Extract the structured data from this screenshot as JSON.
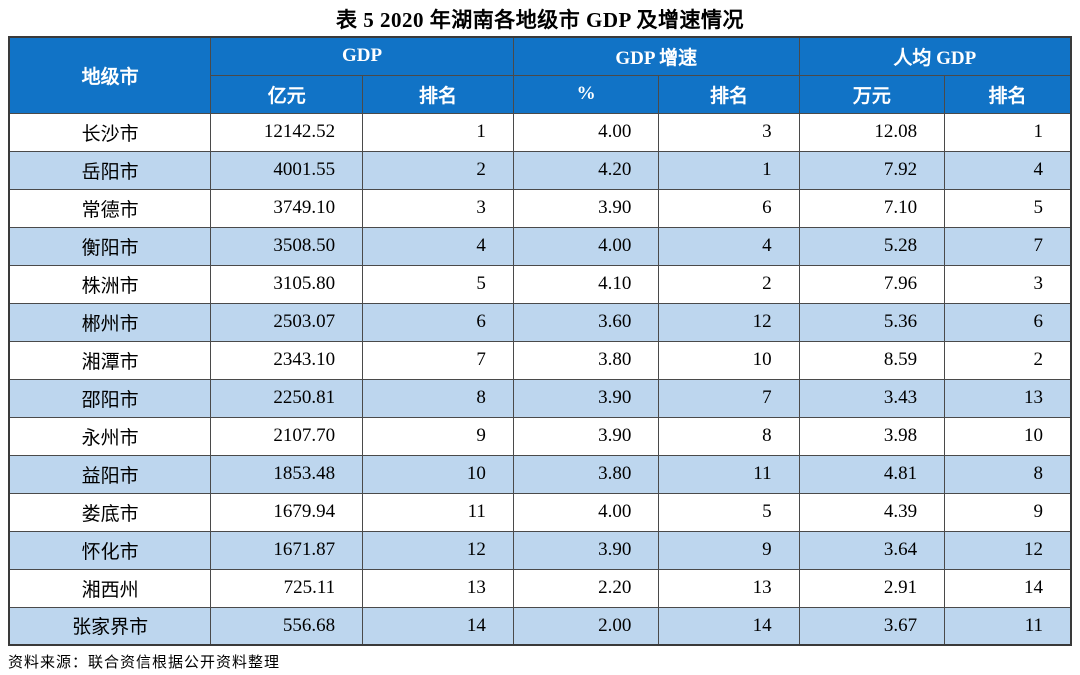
{
  "title": "表 5  2020 年湖南各地级市 GDP 及增速情况",
  "table": {
    "header": {
      "city": "地级市",
      "groups": [
        {
          "label": "GDP",
          "sub": [
            "亿元",
            "排名"
          ]
        },
        {
          "label": "GDP 增速",
          "sub": [
            "%",
            "排名"
          ]
        },
        {
          "label": "人均 GDP",
          "sub": [
            "万元",
            "排名"
          ]
        }
      ]
    },
    "rows": [
      [
        "长沙市",
        "12142.52",
        "1",
        "4.00",
        "3",
        "12.08",
        "1"
      ],
      [
        "岳阳市",
        "4001.55",
        "2",
        "4.20",
        "1",
        "7.92",
        "4"
      ],
      [
        "常德市",
        "3749.10",
        "3",
        "3.90",
        "6",
        "7.10",
        "5"
      ],
      [
        "衡阳市",
        "3508.50",
        "4",
        "4.00",
        "4",
        "5.28",
        "7"
      ],
      [
        "株洲市",
        "3105.80",
        "5",
        "4.10",
        "2",
        "7.96",
        "3"
      ],
      [
        "郴州市",
        "2503.07",
        "6",
        "3.60",
        "12",
        "5.36",
        "6"
      ],
      [
        "湘潭市",
        "2343.10",
        "7",
        "3.80",
        "10",
        "8.59",
        "2"
      ],
      [
        "邵阳市",
        "2250.81",
        "8",
        "3.90",
        "7",
        "3.43",
        "13"
      ],
      [
        "永州市",
        "2107.70",
        "9",
        "3.90",
        "8",
        "3.98",
        "10"
      ],
      [
        "益阳市",
        "1853.48",
        "10",
        "3.80",
        "11",
        "4.81",
        "8"
      ],
      [
        "娄底市",
        "1679.94",
        "11",
        "4.00",
        "5",
        "4.39",
        "9"
      ],
      [
        "怀化市",
        "1671.87",
        "12",
        "3.90",
        "9",
        "3.64",
        "12"
      ],
      [
        "湘西州",
        "725.11",
        "13",
        "2.20",
        "13",
        "2.91",
        "14"
      ],
      [
        "张家界市",
        "556.68",
        "14",
        "2.00",
        "14",
        "3.67",
        "11"
      ]
    ]
  },
  "source_note": "资料来源：联合资信根据公开资料整理",
  "colors": {
    "header_bg": "#1173C6",
    "header_text": "#FFFFFF",
    "row_alt_bg": "#BDD6EE",
    "border": "#4A4A4A",
    "body_text": "#000000"
  }
}
